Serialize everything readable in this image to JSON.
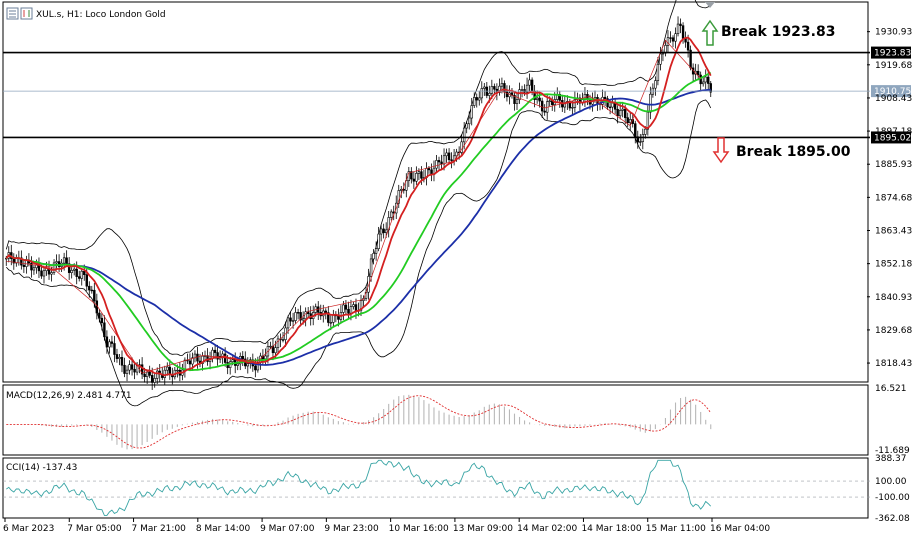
{
  "header": {
    "title": "XUL.s, H1:  Loco London Gold"
  },
  "chart_data": [
    {
      "type": "candlestick",
      "title": "XUL.s, H1:  Loco London Gold",
      "y_ticks": [
        "1930.93",
        "1919.68",
        "1908.43",
        "1897.18",
        "1885.93",
        "1874.68",
        "1863.43",
        "1852.18",
        "1840.93",
        "1829.68",
        "1818.43"
      ],
      "ylim": [
        1812.0,
        1941.0
      ],
      "x_ticks": [
        "6 Mar 2023",
        "7 Mar 05:00",
        "7 Mar 21:00",
        "8 Mar 14:00",
        "9 Mar 07:00",
        "9 Mar 23:00",
        "10 Mar 16:00",
        "13 Mar 09:00",
        "14 Mar 02:00",
        "14 Mar 18:00",
        "15 Mar 11:00",
        "16 Mar 04:00"
      ],
      "price_tags": [
        {
          "label": "1923.83",
          "value": 1923.83,
          "color": "#000000"
        },
        {
          "label": "1910.75",
          "value": 1910.75,
          "color": "#8fa6be"
        },
        {
          "label": "1895.02",
          "value": 1895.02,
          "color": "#000000"
        }
      ],
      "horizontal_lines": [
        {
          "value": 1923.83,
          "color": "#000000"
        },
        {
          "value": 1895.02,
          "color": "#000000"
        }
      ],
      "annotations": [
        {
          "text": "Break 1923.83",
          "arrow": "up",
          "color": "#3a9a3a"
        },
        {
          "text": "Break 1895.00",
          "arrow": "down",
          "color": "#e03030"
        }
      ],
      "close_anchors": [
        [
          0,
          1853
        ],
        [
          6,
          1854
        ],
        [
          12,
          1849
        ],
        [
          18,
          1851
        ],
        [
          24,
          1852
        ],
        [
          30,
          1848
        ],
        [
          36,
          1838
        ],
        [
          40,
          1825
        ],
        [
          46,
          1818
        ],
        [
          54,
          1815
        ],
        [
          62,
          1814
        ],
        [
          70,
          1817
        ],
        [
          78,
          1821
        ],
        [
          86,
          1820
        ],
        [
          94,
          1818
        ],
        [
          100,
          1819
        ],
        [
          106,
          1823
        ],
        [
          112,
          1832
        ],
        [
          120,
          1836
        ],
        [
          128,
          1834
        ],
        [
          136,
          1836
        ],
        [
          142,
          1840
        ],
        [
          148,
          1862
        ],
        [
          154,
          1870
        ],
        [
          160,
          1883
        ],
        [
          166,
          1881
        ],
        [
          172,
          1888
        ],
        [
          178,
          1887
        ],
        [
          184,
          1903
        ],
        [
          190,
          1912
        ],
        [
          196,
          1911
        ],
        [
          202,
          1909
        ],
        [
          208,
          1912
        ],
        [
          214,
          1905
        ],
        [
          220,
          1908
        ],
        [
          226,
          1906
        ],
        [
          232,
          1909
        ],
        [
          238,
          1906
        ],
        [
          244,
          1905
        ],
        [
          248,
          1899
        ],
        [
          252,
          1893
        ],
        [
          256,
          1908
        ],
        [
          262,
          1928
        ],
        [
          268,
          1932
        ],
        [
          272,
          1920
        ],
        [
          276,
          1915
        ],
        [
          280,
          1911
        ]
      ],
      "moving_averages": [
        {
          "color": "#d42020",
          "period": 10
        },
        {
          "color": "#22cc22",
          "period": 30
        },
        {
          "color": "#1c2fa8",
          "period": 60
        }
      ],
      "bollinger_bands": {
        "color": "#000000",
        "period": 20,
        "deviation": 2
      }
    },
    {
      "type": "histogram",
      "title": "MACD(12,26,9) 2.481 4.771",
      "y_ticks": [
        "16.521",
        "-11.689"
      ],
      "ylim": [
        -14,
        18
      ],
      "main_color": "#b8b8b8",
      "signal_color": "#e03030"
    },
    {
      "type": "line",
      "title": "CCI(14) -137.43",
      "y_ticks": [
        "388.37",
        "100.00",
        "-100.00",
        "-362.08"
      ],
      "levels": [
        388.37,
        100,
        -100,
        -362.08
      ],
      "line_color": "#3aa5a5"
    }
  ]
}
